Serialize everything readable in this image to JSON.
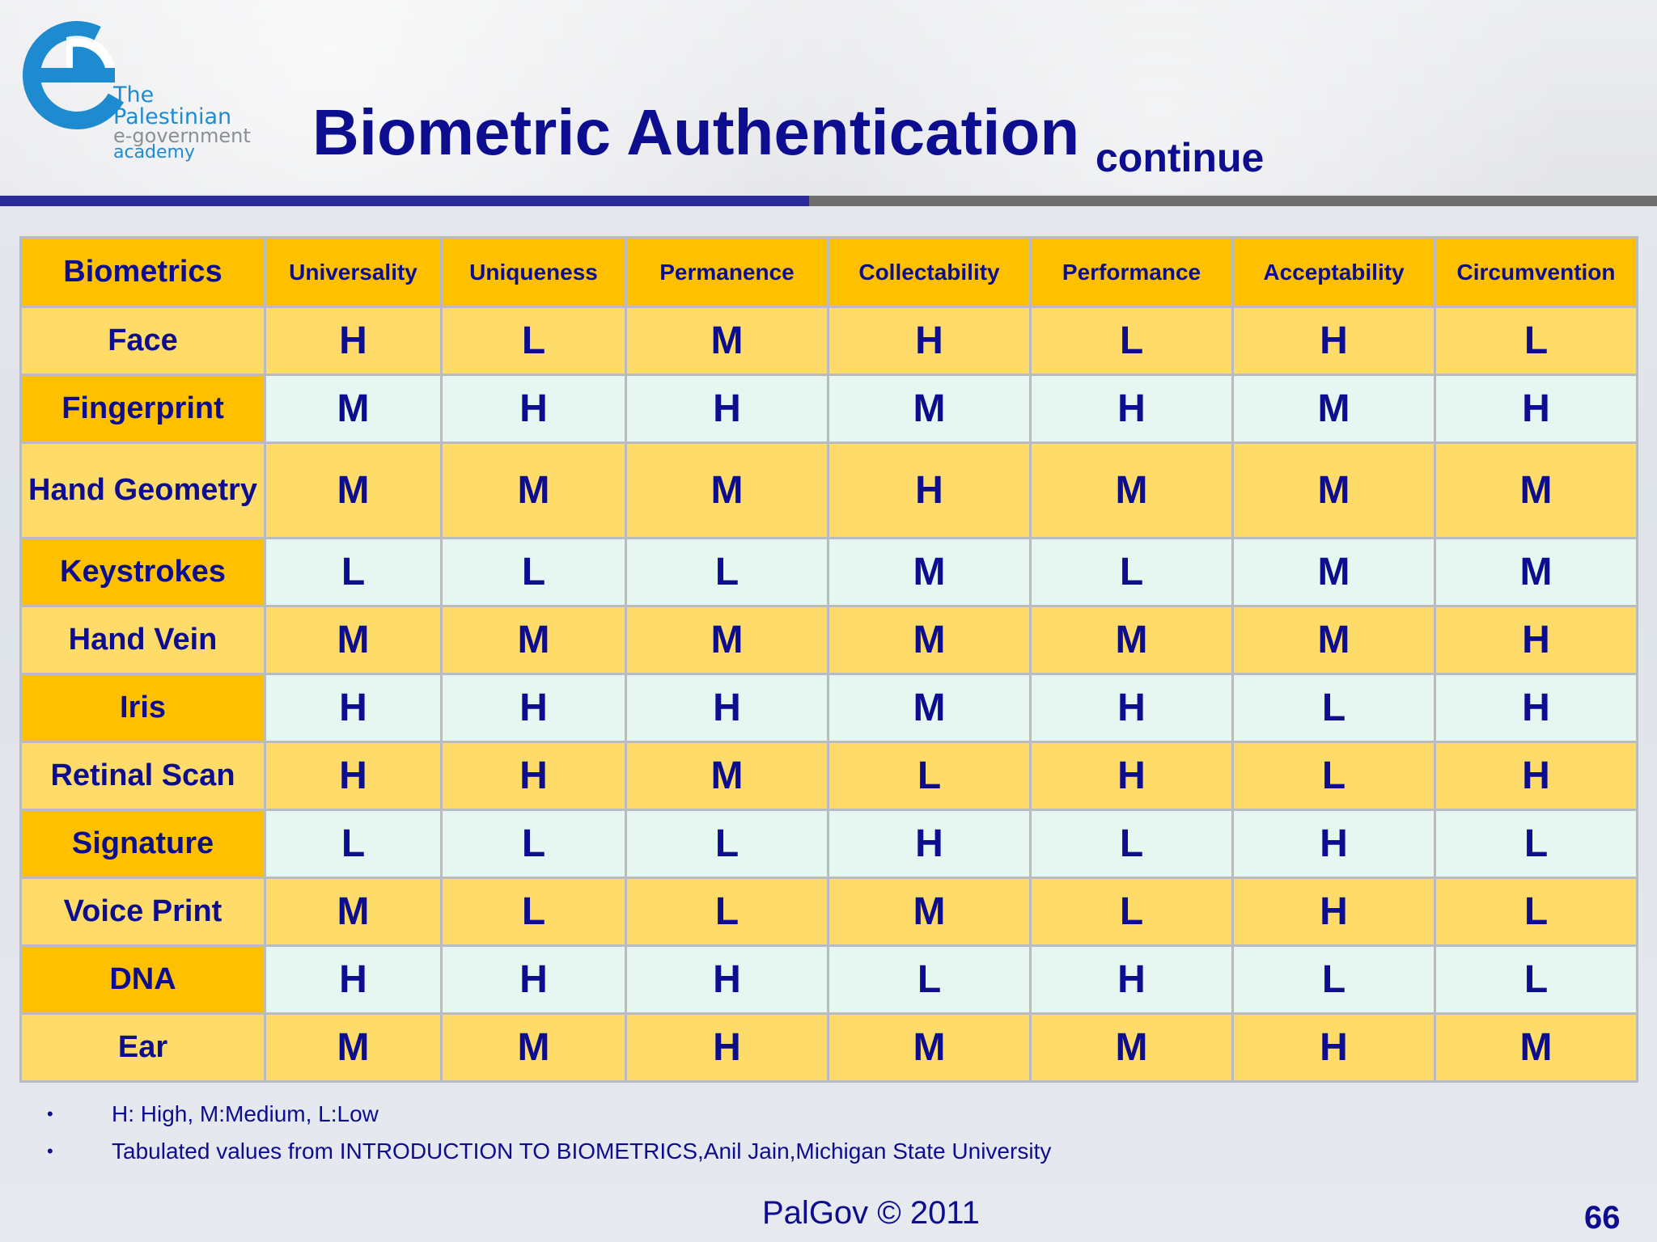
{
  "logo": {
    "line1": "The Palestinian",
    "line2": "e-government",
    "line3": "academy",
    "primary_color": "#1e8bd0"
  },
  "header": {
    "title": "Biometric Authentication",
    "subtitle": "continue"
  },
  "table": {
    "columns": [
      "Biometrics",
      "Universality",
      "Uniqueness",
      "Permanence",
      "Collectability",
      "Performance",
      "Acceptability",
      "Circumvention"
    ],
    "rows": [
      {
        "name": "Face",
        "values": [
          "H",
          "L",
          "M",
          "H",
          "L",
          "H",
          "L"
        ]
      },
      {
        "name": "Fingerprint",
        "values": [
          "M",
          "H",
          "H",
          "M",
          "H",
          "M",
          "H"
        ]
      },
      {
        "name": "Hand Geometry",
        "values": [
          "M",
          "M",
          "M",
          "H",
          "M",
          "M",
          "M"
        ]
      },
      {
        "name": "Keystrokes",
        "values": [
          "L",
          "L",
          "L",
          "M",
          "L",
          "M",
          "M"
        ]
      },
      {
        "name": "Hand Vein",
        "values": [
          "M",
          "M",
          "M",
          "M",
          "M",
          "M",
          "H"
        ]
      },
      {
        "name": "Iris",
        "values": [
          "H",
          "H",
          "H",
          "M",
          "H",
          "L",
          "H"
        ]
      },
      {
        "name": "Retinal Scan",
        "values": [
          "H",
          "H",
          "M",
          "L",
          "H",
          "L",
          "H"
        ]
      },
      {
        "name": "Signature",
        "values": [
          "L",
          "L",
          "L",
          "H",
          "L",
          "H",
          "L"
        ]
      },
      {
        "name": "Voice Print",
        "values": [
          "M",
          "L",
          "L",
          "M",
          "L",
          "H",
          "L"
        ]
      },
      {
        "name": "DNA",
        "values": [
          "H",
          "H",
          "H",
          "L",
          "H",
          "L",
          "L"
        ]
      },
      {
        "name": "Ear",
        "values": [
          "M",
          "M",
          "H",
          "M",
          "M",
          "H",
          "M"
        ]
      }
    ]
  },
  "notes": [
    "H: High, M:Medium, L:Low",
    "Tabulated values from  INTRODUCTION TO BIOMETRICS,Anil Jain,Michigan State University"
  ],
  "footer": {
    "text": "PalGov © 2011",
    "page_number": "66"
  },
  "colors": {
    "title": "#0d0d8f",
    "header_fill": "#ffc000",
    "row_light_yellow": "#ffdb6a",
    "row_mint": "#e6f6f1"
  }
}
